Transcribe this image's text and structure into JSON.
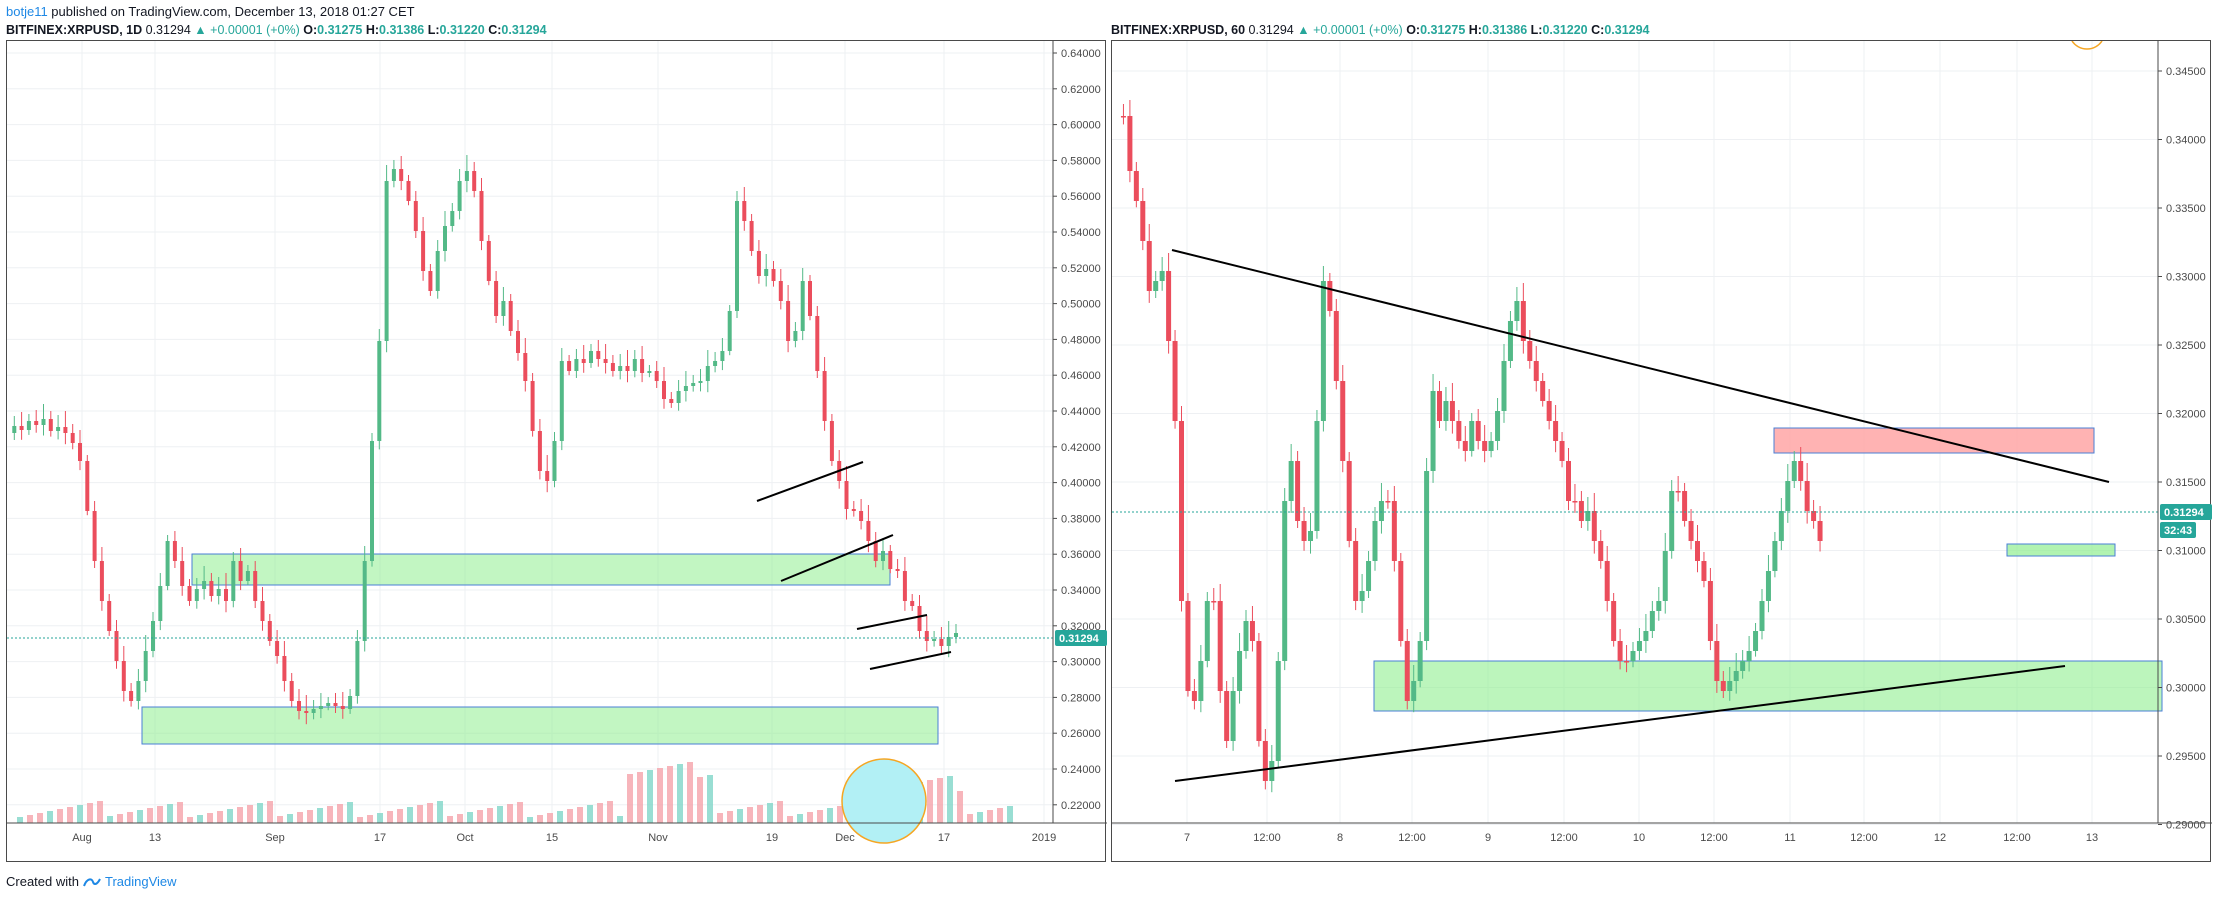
{
  "header": {
    "author": "botje11",
    "published_text": " published on TradingView.com, December 13, 2018 01:27 CET"
  },
  "left_chart": {
    "symbol": "BITFINEX:XRPUSD, 1D",
    "last": "0.31294",
    "change": "▲ +0.00001 (+0%)",
    "open_label": "O:",
    "open": "0.31275",
    "high_label": "H:",
    "high": "0.31386",
    "low_label": "L:",
    "low": "0.31220",
    "close_label": "C:",
    "close": "0.31294",
    "y_ticks": [
      "0.64000",
      "0.62000",
      "0.60000",
      "0.58000",
      "0.56000",
      "0.54000",
      "0.52000",
      "0.50000",
      "0.48000",
      "0.46000",
      "0.44000",
      "0.42000",
      "0.40000",
      "0.38000",
      "0.36000",
      "0.34000",
      "0.32000",
      "0.30000",
      "0.28000",
      "0.26000",
      "0.24000",
      "0.22000"
    ],
    "x_ticks": [
      "Aug",
      "13",
      "Sep",
      "17",
      "Oct",
      "15",
      "Nov",
      "19",
      "Dec",
      "17",
      "2019"
    ],
    "price_label": "0.31294"
  },
  "right_chart": {
    "symbol": "BITFINEX:XRPUSD, 60",
    "last": "0.31294",
    "change": "▲ +0.00001 (+0%)",
    "open_label": "O:",
    "open": "0.31275",
    "high_label": "H:",
    "high": "0.31386",
    "low_label": "L:",
    "low": "0.31220",
    "close_label": "C:",
    "close": "0.31294",
    "y_ticks": [
      "0.34500",
      "0.34000",
      "0.33500",
      "0.33000",
      "0.32500",
      "0.32000",
      "0.31500",
      "0.31000",
      "0.30500",
      "0.30000",
      "0.29500",
      "0.29000"
    ],
    "x_ticks": [
      "7",
      "12:00",
      "8",
      "12:00",
      "9",
      "12:00",
      "10",
      "12:00",
      "11",
      "12:00",
      "12",
      "12:00",
      "13"
    ],
    "price_label": "0.31294",
    "countdown": "32:43"
  },
  "footer": {
    "created_with": "Created with",
    "brand": "TradingView"
  },
  "colors": {
    "up": "#53b987",
    "down": "#eb4d5c",
    "support_zone": "#90ee90",
    "resistance_zone": "#ffa0a0",
    "price_line": "#26a69a"
  }
}
